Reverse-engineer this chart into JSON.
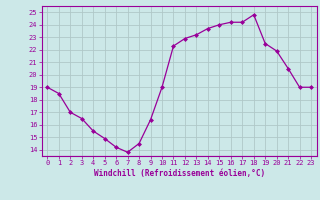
{
  "x": [
    0,
    1,
    2,
    3,
    4,
    5,
    6,
    7,
    8,
    9,
    10,
    11,
    12,
    13,
    14,
    15,
    16,
    17,
    18,
    19,
    20,
    21,
    22,
    23
  ],
  "y": [
    19,
    18.5,
    17,
    16.5,
    15.5,
    14.9,
    14.2,
    13.8,
    14.5,
    16.4,
    19.0,
    22.3,
    22.9,
    23.2,
    23.7,
    24.0,
    24.2,
    24.2,
    24.8,
    22.5,
    21.9,
    20.5,
    19.0,
    19.0
  ],
  "ylim": [
    13.5,
    25.5
  ],
  "yticks": [
    14,
    15,
    16,
    17,
    18,
    19,
    20,
    21,
    22,
    23,
    24,
    25
  ],
  "xticks": [
    0,
    1,
    2,
    3,
    4,
    5,
    6,
    7,
    8,
    9,
    10,
    11,
    12,
    13,
    14,
    15,
    16,
    17,
    18,
    19,
    20,
    21,
    22,
    23
  ],
  "xlabel": "Windchill (Refroidissement éolien,°C)",
  "line_color": "#990099",
  "marker": "D",
  "marker_size": 2.0,
  "bg_color": "#cce8e8",
  "grid_color": "#b0c8c8",
  "tick_color": "#990099",
  "label_color": "#990099",
  "tick_fontsize": 5.0,
  "xlabel_fontsize": 5.5
}
